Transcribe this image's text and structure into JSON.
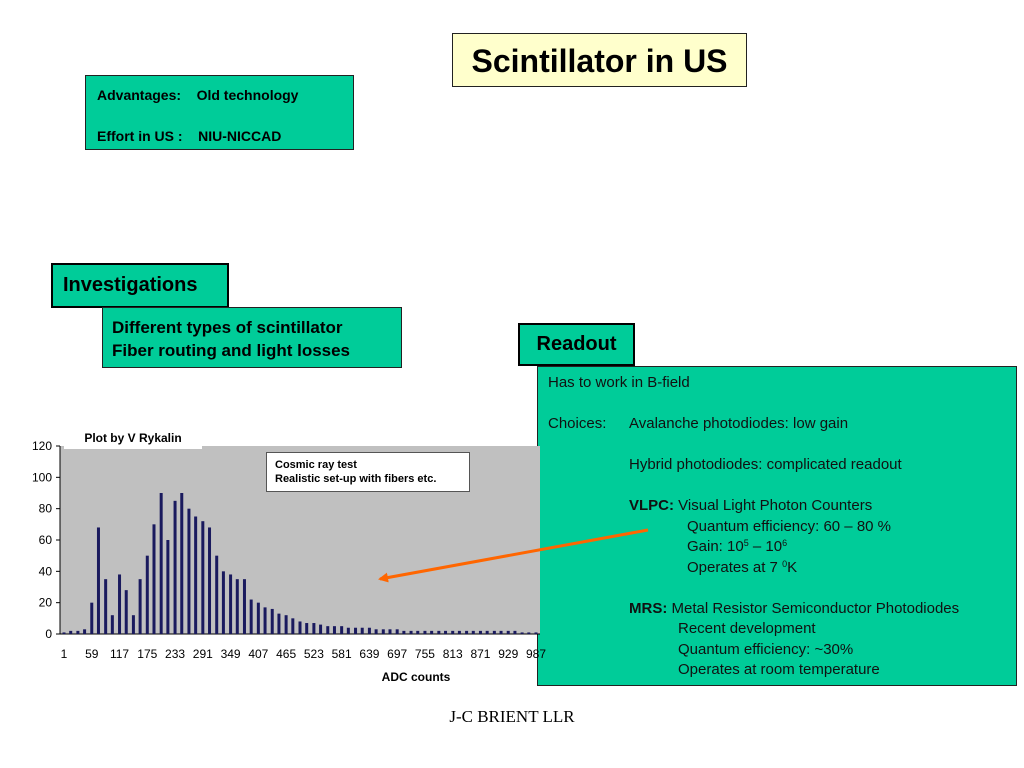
{
  "slide": {
    "title": "Scintillator in US",
    "advantages": {
      "line1": "Advantages:    Old technology",
      "line2": "Effort in US :    NIU-NICCAD"
    },
    "investigations": {
      "heading": "Investigations",
      "items": [
        "Different types of scintillator",
        "Fiber routing and light losses"
      ]
    },
    "readout": {
      "heading": "Readout",
      "bfield": "Has to work in B-field",
      "choices_label": "Choices:",
      "apd": "Avalanche photodiodes: low gain",
      "hpd": "Hybrid photodiodes: complicated readout",
      "vlpc": {
        "label": "VLPC:",
        "name": "Visual Light Photon Counters",
        "qe": "Quantum efficiency: 60 – 80 %",
        "gain_prefix": "Gain: 10",
        "gain_exp1": "5",
        "gain_mid": " – 10",
        "gain_exp2": "6",
        "temp_prefix": "Operates at 7 ",
        "temp_sup": "0",
        "temp_unit": "K"
      },
      "mrs": {
        "label": "MRS:",
        "name": "Metal Resistor Semiconductor Photodiodes",
        "dev": "Recent development",
        "qe": "Quantum efficiency: ~30%",
        "temp": "Operates at room temperature"
      }
    },
    "footer": "J-C BRIENT  LLR"
  },
  "chart_data": {
    "type": "bar",
    "title": "Plot by V Rykalin",
    "annotation": [
      "Cosmic ray test",
      "Realistic set-up with fibers etc."
    ],
    "xlabel": "ADC counts",
    "ylabel": "",
    "ylim": [
      0,
      120
    ],
    "yticks": [
      0,
      20,
      40,
      60,
      80,
      100,
      120
    ],
    "xtick_labels": [
      "1",
      "59",
      "117",
      "175",
      "233",
      "291",
      "349",
      "407",
      "465",
      "523",
      "581",
      "639",
      "697",
      "755",
      "813",
      "871",
      "929",
      "987"
    ],
    "grid": false,
    "plot_background": "#c0c0c0",
    "bar_color": "#1a1a5e",
    "arrow_color": "#ff6600",
    "x": [
      1,
      15,
      30,
      44,
      59,
      73,
      88,
      102,
      117,
      131,
      146,
      160,
      175,
      189,
      204,
      218,
      233,
      247,
      262,
      276,
      291,
      305,
      320,
      334,
      349,
      363,
      378,
      392,
      407,
      421,
      436,
      450,
      465,
      479,
      494,
      508,
      523,
      537,
      552,
      566,
      581,
      595,
      610,
      624,
      639,
      653,
      668,
      682,
      697,
      711,
      726,
      740,
      755,
      769,
      784,
      798,
      813,
      827,
      842,
      856,
      871,
      885,
      900,
      914,
      929,
      943,
      958,
      972,
      987
    ],
    "values": [
      1,
      2,
      2,
      3,
      20,
      68,
      35,
      12,
      38,
      28,
      12,
      35,
      50,
      70,
      90,
      60,
      85,
      90,
      80,
      75,
      72,
      68,
      50,
      40,
      38,
      35,
      35,
      22,
      20,
      17,
      16,
      13,
      12,
      10,
      8,
      7,
      7,
      6,
      5,
      5,
      5,
      4,
      4,
      4,
      4,
      3,
      3,
      3,
      3,
      2,
      2,
      2,
      2,
      2,
      2,
      2,
      2,
      2,
      2,
      2,
      2,
      2,
      2,
      2,
      2,
      2,
      1,
      1,
      1
    ]
  }
}
